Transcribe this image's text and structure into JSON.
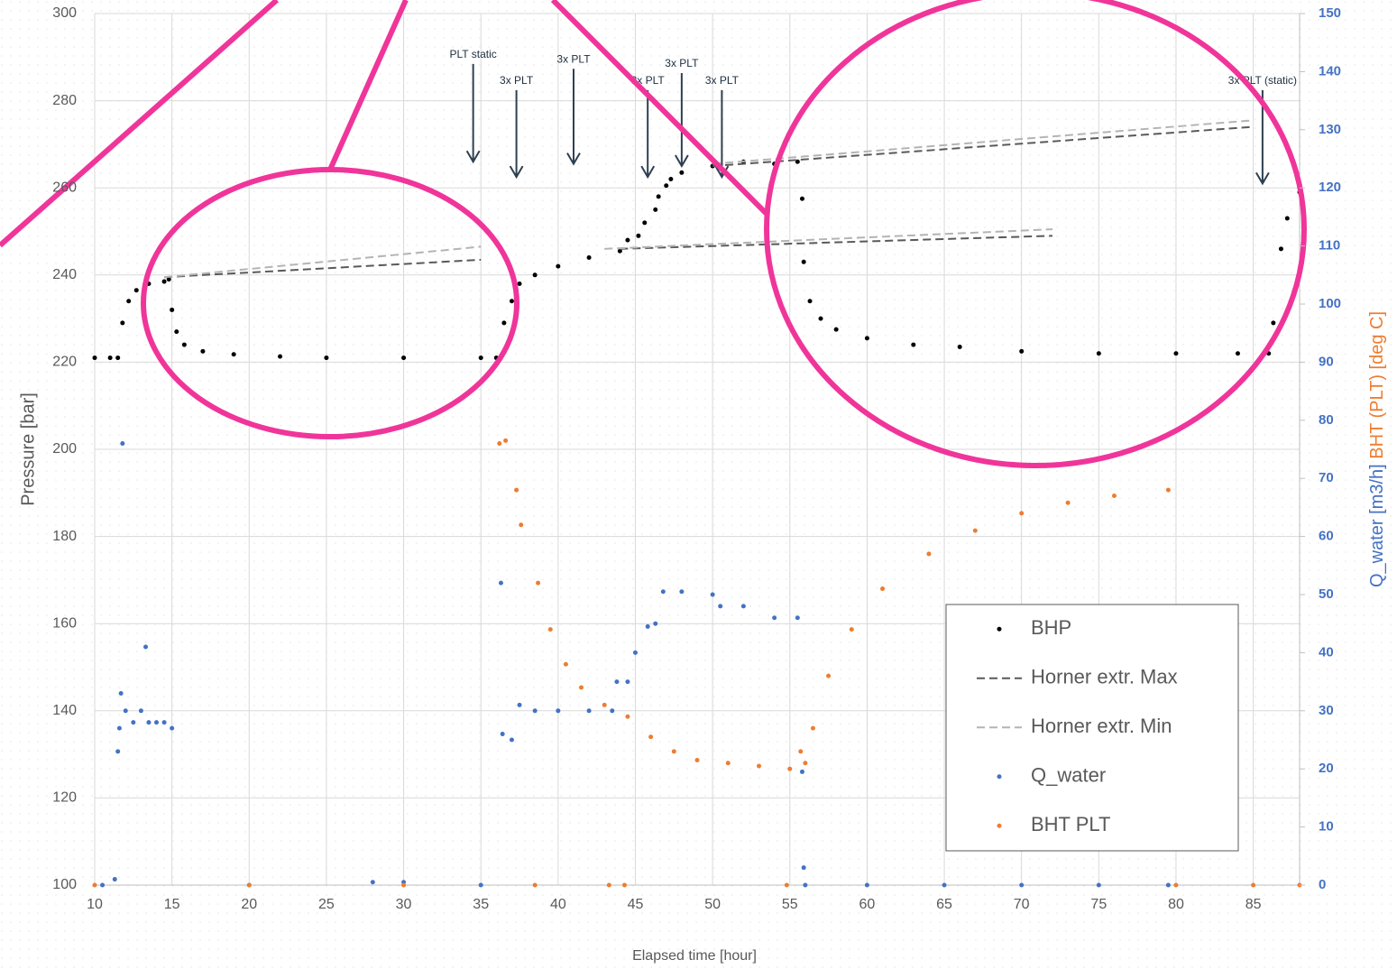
{
  "chart_data": {
    "type": "scatter",
    "xlabel": "Elapsed time [hour]",
    "ylabel": "Pressure [bar]",
    "y2label": [
      "Q_water [m3/h]",
      "BHT (PLT) [deg C]"
    ],
    "xlim": [
      10,
      88
    ],
    "xticks": [
      10,
      15,
      20,
      25,
      30,
      35,
      40,
      45,
      50,
      55,
      60,
      65,
      70,
      75,
      80,
      85
    ],
    "ylim": [
      100,
      300
    ],
    "yticks": [
      100,
      120,
      140,
      160,
      180,
      200,
      220,
      240,
      260,
      280,
      300
    ],
    "y2lim": [
      0,
      150
    ],
    "y2ticks": [
      0,
      10,
      20,
      30,
      40,
      50,
      60,
      70,
      80,
      90,
      100,
      110,
      120,
      130,
      140,
      150
    ],
    "grid": true,
    "legend": "lower right",
    "series": [
      {
        "name": "BHP",
        "color": "#000000",
        "mode": "markers",
        "x": [
          10.0,
          11.0,
          11.5,
          11.8,
          12.2,
          12.7,
          13.5,
          14.5,
          14.8,
          15.0,
          15.3,
          15.8,
          17,
          19,
          22,
          25,
          30,
          35,
          36,
          36.5,
          37,
          37.5,
          38.5,
          40,
          42,
          44,
          44.5,
          45.2,
          45.6,
          46.3,
          46.5,
          47,
          47.3,
          48,
          50,
          52,
          54,
          55.5,
          55.8,
          55.9,
          56.3,
          57,
          58,
          60,
          63,
          66,
          70,
          75,
          80,
          84,
          86,
          86.3,
          86.8,
          87.2,
          88
        ],
        "values": [
          221,
          221,
          221,
          229,
          234,
          236.5,
          238,
          238.5,
          239,
          232,
          227,
          224,
          222.5,
          221.8,
          221.3,
          221,
          221,
          221,
          221,
          229,
          234,
          238,
          240,
          242,
          244,
          245.5,
          248,
          249,
          252,
          255,
          258,
          260.5,
          262,
          263.5,
          265,
          266,
          265.5,
          266,
          257.5,
          243,
          234,
          230,
          227.5,
          225.5,
          224,
          223.5,
          222.5,
          222,
          222,
          222,
          222,
          229,
          246,
          253,
          259
        ]
      },
      {
        "name": "Horner extr. Max",
        "color": "#595959",
        "mode": "lines",
        "dash": true,
        "x": [
          14.5,
          35,
          null,
          44,
          72,
          null,
          50,
          85
        ],
        "values": [
          239.5,
          243.5,
          null,
          246,
          249,
          null,
          265,
          274
        ]
      },
      {
        "name": "Horner extr. Min",
        "color": "#b4b4b4",
        "mode": "lines",
        "dash": true,
        "x": [
          14.5,
          35,
          null,
          43,
          72,
          null,
          50,
          85
        ],
        "values": [
          239.5,
          246.5,
          null,
          246,
          250.5,
          null,
          265.5,
          275.5
        ]
      },
      {
        "name": "Q_water",
        "color": "#4472c4",
        "mode": "markers",
        "axis": "y2",
        "x": [
          10.5,
          11.3,
          11.5,
          11.6,
          11.7,
          11.8,
          12,
          12.5,
          13,
          13.3,
          13.5,
          14,
          14.5,
          15,
          20,
          28,
          30,
          35,
          36.3,
          36.4,
          37,
          37.5,
          38.5,
          40,
          42,
          43.5,
          43.8,
          44.5,
          45,
          45.8,
          46.3,
          46.8,
          48,
          50,
          50.5,
          52,
          54,
          55.5,
          55.8,
          55.9,
          56,
          60,
          65,
          70,
          75,
          79.5
        ],
        "values": [
          0,
          1,
          23,
          27,
          33,
          76,
          30,
          28,
          30,
          41,
          28,
          28,
          28,
          27,
          0,
          0.5,
          0.5,
          0,
          52,
          26,
          25,
          31,
          30,
          30,
          30,
          30,
          35,
          35,
          40,
          44.5,
          45,
          50.5,
          50.5,
          50,
          48,
          48,
          46,
          46,
          19.5,
          3,
          0,
          0,
          0,
          0,
          0,
          0
        ]
      },
      {
        "name": "BHT PLT",
        "color": "#ed7d31",
        "mode": "markers",
        "axis": "y2",
        "x": [
          10,
          20,
          30,
          36.2,
          36.6,
          37.3,
          37.6,
          38.5,
          38.7,
          39.5,
          40.5,
          41.5,
          43,
          43.3,
          44.3,
          44.5,
          46,
          47.5,
          49,
          51,
          53,
          54.8,
          55,
          55.7,
          56,
          56.5,
          57.5,
          59,
          61,
          64,
          67,
          70,
          73,
          76,
          79.5,
          80,
          85,
          88
        ],
        "values": [
          0,
          0,
          0,
          76,
          76.5,
          68,
          62,
          0,
          52,
          44,
          38,
          34,
          31,
          0,
          0,
          29,
          25.5,
          23,
          21.5,
          21,
          20.5,
          0,
          20,
          23,
          21,
          27,
          36,
          44,
          51,
          57,
          61,
          64,
          65.8,
          67,
          68,
          0,
          0,
          0
        ]
      }
    ],
    "annotations": [
      {
        "text": "PLT static",
        "x": 34.5,
        "y": 290.5,
        "arrow_to": 266
      },
      {
        "text": "3x PLT",
        "x": 37.3,
        "y": 284.5,
        "arrow_to": 262.5
      },
      {
        "text": "3x PLT",
        "x": 41,
        "y": 289.4,
        "arrow_to": 265.5
      },
      {
        "text": "3x PLT",
        "x": 45.8,
        "y": 284.5,
        "arrow_to": 262.5
      },
      {
        "text": "3x PLT",
        "x": 48,
        "y": 288.4,
        "arrow_to": 265
      },
      {
        "text": "3x PLT",
        "x": 50.6,
        "y": 284.5,
        "arrow_to": 262.5
      },
      {
        "text": "3x PLT (static)",
        "x": 85.6,
        "y": 284.5,
        "arrow_to": 261
      }
    ]
  }
}
